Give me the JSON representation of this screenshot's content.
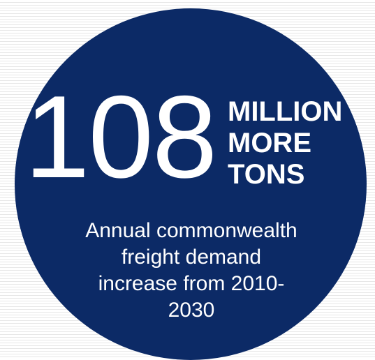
{
  "stat": {
    "number": "108",
    "unit_lines": [
      "MILLION",
      "MORE",
      "TONS"
    ]
  },
  "caption_lines": [
    "Annual commonwealth",
    "freight demand",
    "increase from 2010-",
    "2030"
  ],
  "colors": {
    "circle": "#0c2a66",
    "text": "#ffffff",
    "background_stripe": "#e7e7e7"
  }
}
